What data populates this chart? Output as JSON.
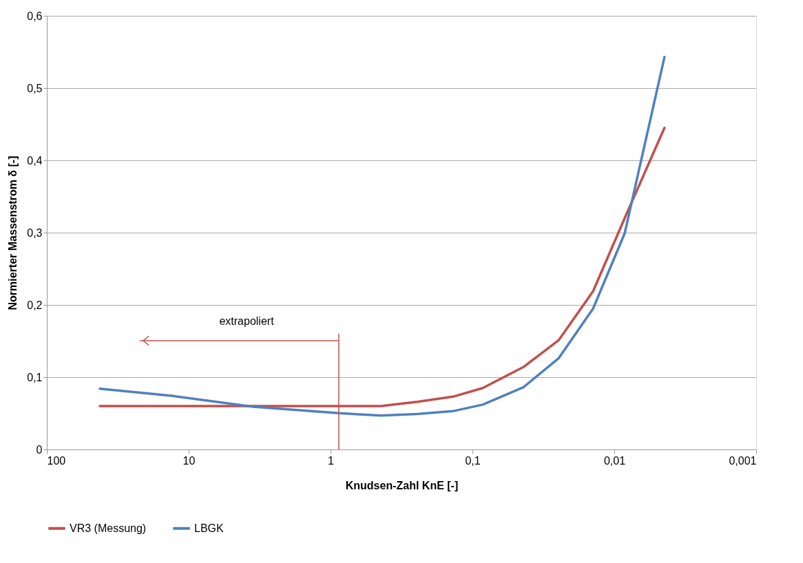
{
  "chart_data": {
    "type": "line",
    "xlabel": "Knudsen-Zahl KnE [-]",
    "ylabel": "Normierter Massenstrom δ [-]",
    "xlim": [
      100,
      0.001
    ],
    "ylim": [
      0,
      0.6
    ],
    "log": "x",
    "xticks": [
      100,
      10,
      1,
      {
        "value": 0.1,
        "label": "0,1"
      },
      {
        "value": 0.01,
        "label": "0,01"
      },
      {
        "value": 0.001,
        "label": "0,001"
      }
    ],
    "yticks": [
      0,
      {
        "value": 0.1,
        "label": "0,1"
      },
      {
        "value": 0.2,
        "label": "0,2"
      },
      {
        "value": 0.3,
        "label": "0,3"
      },
      {
        "value": 0.4,
        "label": "0,4"
      },
      {
        "value": 0.5,
        "label": "0,5"
      },
      {
        "value": 0.6,
        "label": "0,6"
      }
    ],
    "grid": "y",
    "legend": "bottom",
    "marker": "none",
    "line_style": "solid",
    "series": [
      {
        "name": "VR3 (Messung)",
        "color": "#c0504d",
        "x": [
          42.3,
          12.9,
          3.5,
          0.845,
          0.443,
          0.244,
          0.137,
          0.0845,
          0.0437,
          0.0247,
          0.0141,
          0.00845,
          0.00443
        ],
        "values": [
          0.06,
          0.06,
          0.06,
          0.06,
          0.06,
          0.066,
          0.073,
          0.085,
          0.114,
          0.151,
          0.219,
          0.32,
          0.445
        ]
      },
      {
        "name": "LBGK",
        "color": "#4f81bd",
        "x": [
          42.3,
          12.9,
          3.5,
          0.845,
          0.443,
          0.244,
          0.137,
          0.0845,
          0.0437,
          0.0247,
          0.0141,
          0.00845,
          0.00443
        ],
        "values": [
          0.084,
          0.074,
          0.059,
          0.05,
          0.047,
          0.049,
          0.053,
          0.062,
          0.086,
          0.126,
          0.195,
          0.299,
          0.543
        ]
      }
    ],
    "ref_lines": [
      {
        "axis": "x",
        "value": 0.875,
        "color": "#c0504d"
      }
    ],
    "annotations": [
      "extrapoliert"
    ]
  }
}
